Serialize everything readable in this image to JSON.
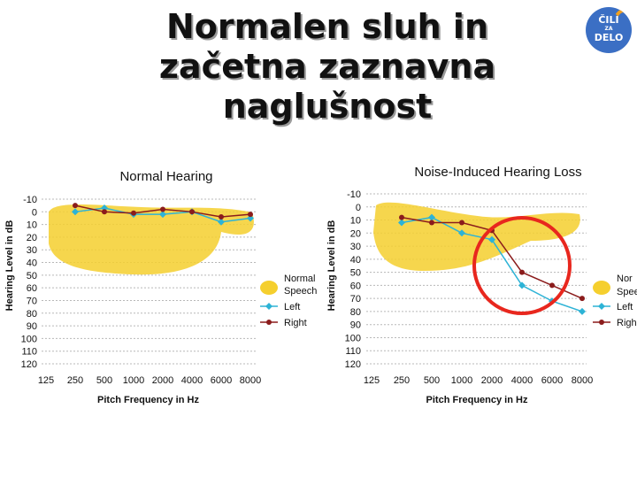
{
  "slide": {
    "title_lines": [
      "Normalen sluh in",
      "začetna zaznavna",
      "naglušnost"
    ],
    "logo": {
      "line1": "ČILI",
      "line2": "ZA",
      "line3": "DELO"
    }
  },
  "colors": {
    "speech_banana": "#f5cf2e",
    "left_ear": "#2db3d6",
    "right_ear": "#8b1c1c",
    "highlight_circle": "#e8271e",
    "grid": "#b8b8b8"
  },
  "chart_data": [
    {
      "type": "line",
      "title": "Normal Hearing",
      "xlabel": "Pitch Frequency in Hz",
      "ylabel": "Hearing Level in dB",
      "categories": [
        "125",
        "250",
        "500",
        "1000",
        "2000",
        "4000",
        "6000",
        "8000"
      ],
      "y_ticks": [
        -10,
        0,
        10,
        20,
        30,
        40,
        50,
        60,
        70,
        80,
        90,
        100,
        110,
        120
      ],
      "ylim": [
        -10,
        120
      ],
      "y_inverted": true,
      "grid": "horizontal dashed",
      "series": [
        {
          "name": "Left",
          "color": "#2db3d6",
          "marker": "diamond",
          "x": [
            "250",
            "500",
            "1000",
            "2000",
            "4000",
            "6000",
            "8000"
          ],
          "values": [
            0,
            -3,
            2,
            2,
            0,
            8,
            5
          ]
        },
        {
          "name": "Right",
          "color": "#8b1c1c",
          "marker": "dot",
          "x": [
            "250",
            "500",
            "1000",
            "2000",
            "4000",
            "6000",
            "8000"
          ],
          "values": [
            -5,
            0,
            1,
            -2,
            0,
            4,
            2
          ]
        }
      ],
      "legend": {
        "placement": "right",
        "entries": [
          "Normal",
          "Speech",
          "Left",
          "Right"
        ]
      }
    },
    {
      "type": "line",
      "title": "Noise-Induced Hearing Loss",
      "xlabel": "Pitch Frequency in Hz",
      "ylabel": "Hearing Level in dB",
      "categories": [
        "125",
        "250",
        "500",
        "1000",
        "2000",
        "4000",
        "6000",
        "8000"
      ],
      "y_ticks": [
        -10,
        0,
        10,
        20,
        30,
        40,
        50,
        60,
        70,
        80,
        90,
        100,
        110,
        120
      ],
      "ylim": [
        -10,
        120
      ],
      "y_inverted": true,
      "grid": "horizontal dashed",
      "series": [
        {
          "name": "Left",
          "color": "#2db3d6",
          "marker": "diamond",
          "x": [
            "250",
            "500",
            "1000",
            "2000",
            "4000",
            "6000",
            "8000"
          ],
          "values": [
            12,
            8,
            20,
            25,
            60,
            72,
            80
          ]
        },
        {
          "name": "Right",
          "color": "#8b1c1c",
          "marker": "dot",
          "x": [
            "250",
            "500",
            "1000",
            "2000",
            "4000",
            "6000",
            "8000"
          ],
          "values": [
            8,
            12,
            12,
            18,
            50,
            60,
            70
          ]
        }
      ],
      "legend": {
        "placement": "right",
        "entries": [
          "Nor",
          "Spee",
          "Left",
          "Righ"
        ]
      },
      "annotation": "red circle around 2000–6000 Hz drop"
    }
  ]
}
